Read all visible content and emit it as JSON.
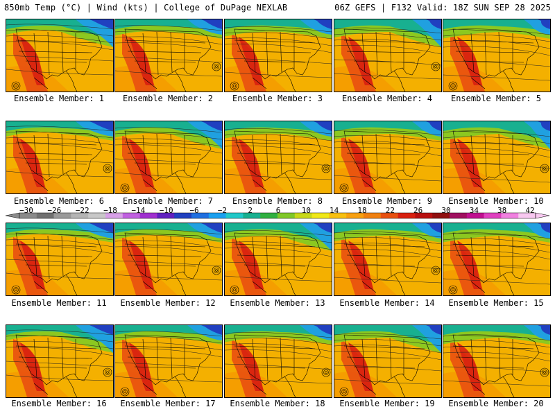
{
  "header": {
    "left_title": "850mb Temp (°C) | Wind (kts) | College of DuPage NEXLAB",
    "right_title": "06Z GEFS | F132 Valid: 18Z SUN SEP 28 2025"
  },
  "panels": [
    {
      "label": "Ensemble Member: 1"
    },
    {
      "label": "Ensemble Member: 2"
    },
    {
      "label": "Ensemble Member: 3"
    },
    {
      "label": "Ensemble Member: 4"
    },
    {
      "label": "Ensemble Member: 5"
    },
    {
      "label": "Ensemble Member: 6"
    },
    {
      "label": "Ensemble Member: 7"
    },
    {
      "label": "Ensemble Member: 8"
    },
    {
      "label": "Ensemble Member: 9"
    },
    {
      "label": "Ensemble Member: 10"
    },
    {
      "label": "Ensemble Member: 11"
    },
    {
      "label": "Ensemble Member: 12"
    },
    {
      "label": "Ensemble Member: 13"
    },
    {
      "label": "Ensemble Member: 14"
    },
    {
      "label": "Ensemble Member: 15"
    },
    {
      "label": "Ensemble Member: 16"
    },
    {
      "label": "Ensemble Member: 17"
    },
    {
      "label": "Ensemble Member: 18"
    },
    {
      "label": "Ensemble Member: 19"
    },
    {
      "label": "Ensemble Member: 20"
    }
  ],
  "colorbar": {
    "ticks": [
      "−30",
      "−26",
      "−22",
      "−18",
      "−14",
      "−10",
      "−6",
      "−2",
      "2",
      "6",
      "10",
      "14",
      "18",
      "22",
      "26",
      "30",
      "34",
      "38",
      "42"
    ],
    "colors": [
      "#8a8a8a",
      "#707070",
      "#9a9a9a",
      "#b4b4b4",
      "#c8c8c8",
      "#d8a0e8",
      "#c060e0",
      "#a030d0",
      "#6020c0",
      "#2040c0",
      "#1f6fe0",
      "#19a0f0",
      "#20c8c8",
      "#18b090",
      "#30b040",
      "#80c828",
      "#c8d818",
      "#f0e818",
      "#f8c010",
      "#f8a010",
      "#f08010",
      "#e85010",
      "#d82010",
      "#b81010",
      "#901010",
      "#a01060",
      "#c01090",
      "#e040c0",
      "#f080e0",
      "#f8c8f0"
    ]
  }
}
